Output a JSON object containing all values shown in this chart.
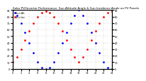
{
  "title": "Solar PV/Inverter Performance  Sun Altitude Angle & Sun Incidence Angle on PV Panels",
  "legend_labels": [
    "Sun Alt",
    "Sun Inc"
  ],
  "blue_color": "#0000ff",
  "red_color": "#ff0000",
  "background_color": "#ffffff",
  "grid_color": "#aaaaaa",
  "blue_x": [
    0,
    1,
    2,
    3,
    4,
    5,
    6,
    7,
    8,
    9,
    10,
    11,
    12,
    13,
    14,
    15,
    16,
    17,
    18,
    19,
    20,
    21,
    22,
    23,
    24
  ],
  "blue_y": [
    90,
    82,
    70,
    56,
    40,
    24,
    10,
    2,
    0,
    2,
    10,
    24,
    40,
    56,
    70,
    82,
    90,
    82,
    70,
    56,
    40,
    24,
    10,
    2,
    0
  ],
  "red_x": [
    0,
    1,
    2,
    3,
    4,
    5,
    6,
    7,
    8,
    9,
    10,
    11,
    12,
    13,
    14,
    15,
    16,
    17,
    18,
    19,
    20,
    21,
    22,
    23,
    24
  ],
  "red_y": [
    10,
    18,
    30,
    44,
    58,
    70,
    80,
    86,
    88,
    86,
    80,
    70,
    58,
    44,
    30,
    18,
    10,
    18,
    30,
    44,
    58,
    70,
    80,
    86,
    88
  ],
  "xlim": [
    0,
    24
  ],
  "ylim": [
    0,
    90
  ],
  "yticks": [
    0,
    10,
    20,
    30,
    40,
    50,
    60,
    70,
    80,
    90
  ],
  "xtick_step": 2,
  "marker_size": 2.0,
  "linewidth": 0.0,
  "title_fontsize": 3.0,
  "tick_labelsize": 2.5,
  "legend_fontsize": 2.5
}
